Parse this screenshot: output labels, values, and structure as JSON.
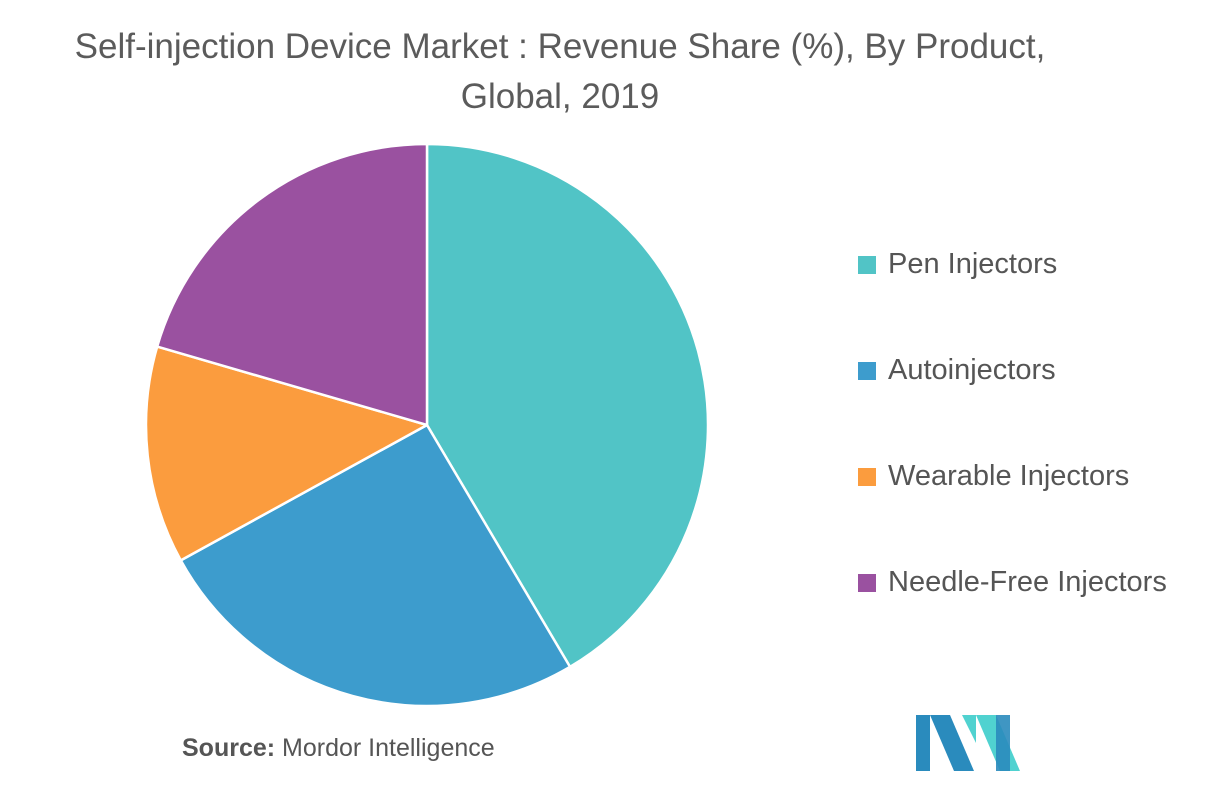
{
  "title": "Self-injection Device Market : Revenue Share (%), By Product, Global, 2019",
  "source": {
    "key": "Source:",
    "value": "Mordor Intelligence"
  },
  "colors": {
    "pen": "#51c4c6",
    "auto": "#3d9ccd",
    "wearable": "#fb9c3e",
    "needle": "#9a51a0",
    "logo_dark": "#2a8bbd",
    "logo_light": "#50d2d0"
  },
  "chart_data": {
    "type": "pie",
    "title": "Self-injection Device Market : Revenue Share (%), By Product, Global, 2019",
    "categories": [
      "Pen Injectors",
      "Autoinjectors",
      "Wearable Injectors",
      "Needle-Free Injectors"
    ],
    "values": [
      41.5,
      25.5,
      12.5,
      20.5
    ],
    "start_angle_deg": 0,
    "direction": "clockwise",
    "legend_position": "right"
  }
}
